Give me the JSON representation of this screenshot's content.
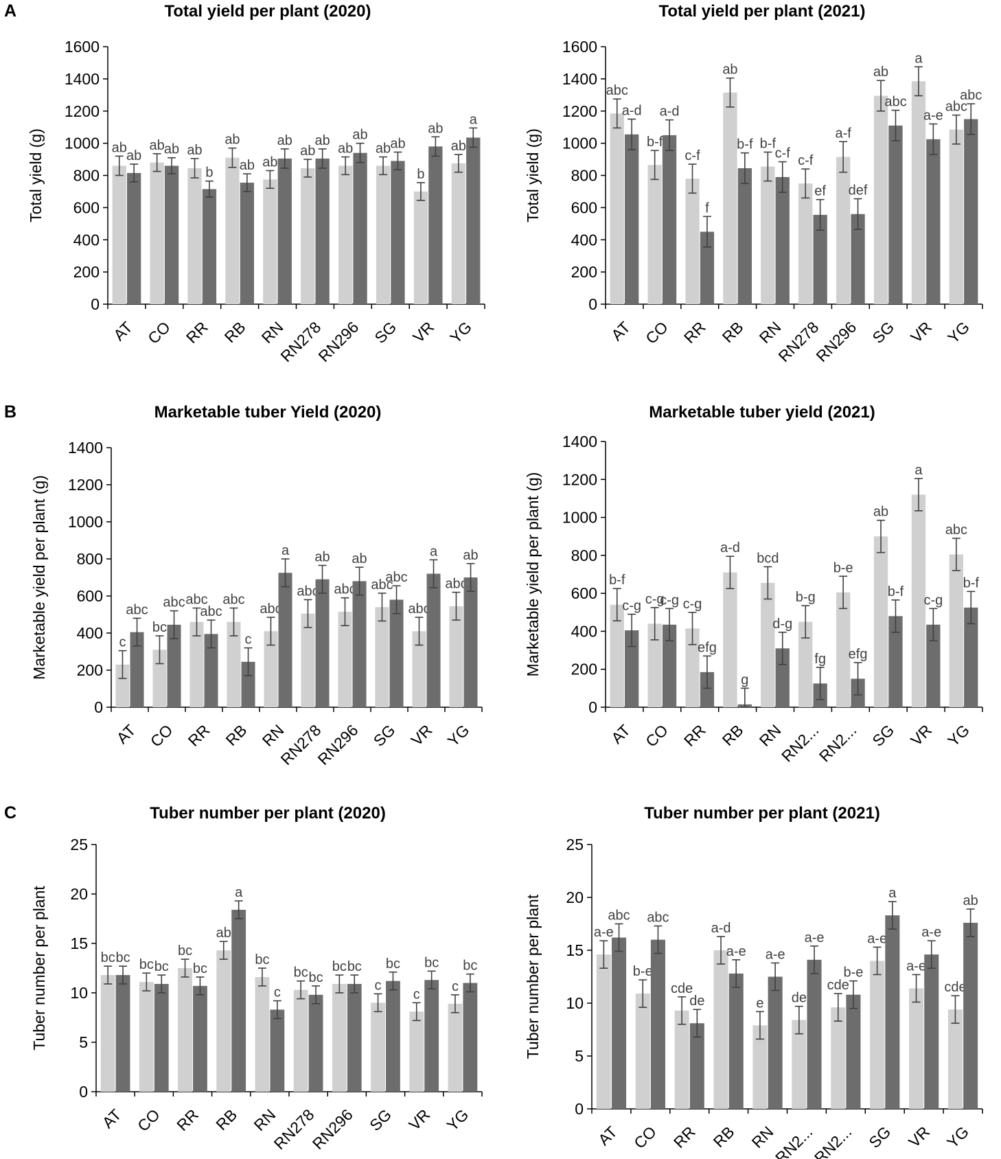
{
  "colors": {
    "light_bar": "#d0d0d0",
    "dark_bar": "#6d6d6d",
    "error": "#404040",
    "sig_text": "#404040"
  },
  "chart_data": [
    {
      "panel": "A",
      "type": "bar",
      "title": "Total yield per plant (2020)",
      "ylabel": "Total yield (g)",
      "ylim": [
        0,
        1600
      ],
      "yticks": [
        0,
        200,
        400,
        600,
        800,
        1000,
        1200,
        1400,
        1600
      ],
      "categories": [
        "AT",
        "CO",
        "RR",
        "RB",
        "RN",
        "RN278",
        "RN296",
        "SG",
        "VR",
        "YG"
      ],
      "series": [
        {
          "name": "light",
          "values": [
            860,
            880,
            845,
            910,
            775,
            845,
            860,
            860,
            700,
            875
          ],
          "errors": [
            60,
            55,
            60,
            60,
            55,
            55,
            55,
            55,
            55,
            55
          ],
          "labels": [
            "ab",
            "ab",
            "ab",
            "ab",
            "ab",
            "ab",
            "ab",
            "ab",
            "b",
            "ab"
          ]
        },
        {
          "name": "dark",
          "values": [
            815,
            860,
            715,
            755,
            905,
            905,
            940,
            890,
            980,
            1035
          ],
          "errors": [
            55,
            50,
            50,
            55,
            60,
            60,
            60,
            55,
            60,
            60
          ],
          "labels": [
            "ab",
            "ab",
            "b",
            "ab",
            "ab",
            "ab",
            "ab",
            "ab",
            "ab",
            "a"
          ]
        }
      ]
    },
    {
      "panel": "",
      "type": "bar",
      "title": "Total yield per plant (2021)",
      "ylabel": "Total yield (g)",
      "ylim": [
        0,
        1600
      ],
      "yticks": [
        0,
        200,
        400,
        600,
        800,
        1000,
        1200,
        1400,
        1600
      ],
      "categories": [
        "AT",
        "CO",
        "RR",
        "RB",
        "RN",
        "RN278",
        "RN296",
        "SG",
        "VR",
        "YG"
      ],
      "series": [
        {
          "name": "light",
          "values": [
            1185,
            865,
            780,
            1315,
            855,
            750,
            915,
            1295,
            1385,
            1085
          ],
          "errors": [
            90,
            90,
            90,
            90,
            90,
            90,
            95,
            95,
            90,
            90
          ],
          "labels": [
            "abc",
            "b-f",
            "c-f",
            "ab",
            "b-f",
            "c-f",
            "a-f",
            "ab",
            "a",
            "abc"
          ]
        },
        {
          "name": "dark",
          "values": [
            1055,
            1050,
            450,
            845,
            790,
            555,
            560,
            1110,
            1025,
            1150
          ],
          "errors": [
            95,
            95,
            95,
            95,
            95,
            95,
            95,
            95,
            95,
            95
          ],
          "labels": [
            "a-d",
            "a-d",
            "f",
            "b-f",
            "c-f",
            "ef",
            "def",
            "abc",
            "a-e",
            "abc"
          ]
        }
      ]
    },
    {
      "panel": "B",
      "type": "bar",
      "title": "Marketable tuber Yield (2020)",
      "ylabel": "Marketable yield per plant (g)",
      "ylim": [
        0,
        1400
      ],
      "yticks": [
        0,
        200,
        400,
        600,
        800,
        1000,
        1200,
        1400
      ],
      "categories": [
        "AT",
        "CO",
        "RR",
        "RB",
        "RN",
        "RN278",
        "RN296",
        "SG",
        "VR",
        "YG"
      ],
      "series": [
        {
          "name": "light",
          "values": [
            230,
            310,
            460,
            460,
            410,
            505,
            515,
            540,
            410,
            545
          ],
          "errors": [
            75,
            75,
            75,
            75,
            75,
            75,
            75,
            75,
            75,
            75
          ],
          "labels": [
            "c",
            "bc",
            "abc",
            "abc",
            "abc",
            "abc",
            "abc",
            "abc",
            "abc",
            "abc"
          ]
        },
        {
          "name": "dark",
          "values": [
            405,
            445,
            395,
            245,
            725,
            690,
            680,
            580,
            720,
            700
          ],
          "errors": [
            75,
            75,
            75,
            75,
            75,
            75,
            75,
            75,
            75,
            75
          ],
          "labels": [
            "abc",
            "abc",
            "abc",
            "c",
            "a",
            "ab",
            "ab",
            "abc",
            "a",
            "ab"
          ]
        }
      ]
    },
    {
      "panel": "",
      "type": "bar",
      "title": "Marketable tuber yield (2021)",
      "ylabel": "Marketable yield per plant (g)",
      "ylim": [
        0,
        1400
      ],
      "yticks": [
        0,
        200,
        400,
        600,
        800,
        1000,
        1200,
        1400
      ],
      "categories": [
        "AT",
        "CO",
        "RR",
        "RB",
        "RN",
        "RN2...",
        "RN2...",
        "SG",
        "VR",
        "YG"
      ],
      "series": [
        {
          "name": "light",
          "values": [
            540,
            440,
            415,
            710,
            655,
            450,
            605,
            900,
            1120,
            805
          ],
          "errors": [
            85,
            85,
            85,
            85,
            85,
            85,
            85,
            85,
            85,
            85
          ],
          "labels": [
            "b-f",
            "c-g",
            "c-g",
            "a-d",
            "bcd",
            "b-g",
            "b-e",
            "ab",
            "a",
            "abc"
          ]
        },
        {
          "name": "dark",
          "values": [
            405,
            435,
            185,
            15,
            310,
            125,
            150,
            480,
            435,
            525
          ],
          "errors": [
            85,
            85,
            85,
            85,
            85,
            85,
            85,
            85,
            85,
            85
          ],
          "labels": [
            "c-g",
            "c-g",
            "efg",
            "g",
            "d-g",
            "fg",
            "efg",
            "b-f",
            "c-g",
            "b-f"
          ]
        }
      ]
    },
    {
      "panel": "C",
      "type": "bar",
      "title": "Tuber number per plant (2020)",
      "ylabel": "Tuber number per plant",
      "ylim": [
        0,
        25
      ],
      "yticks": [
        0,
        5,
        10,
        15,
        20,
        25
      ],
      "categories": [
        "AT",
        "CO",
        "RR",
        "RB",
        "RN",
        "RN278",
        "RN296",
        "SG",
        "VR",
        "YG"
      ],
      "series": [
        {
          "name": "light",
          "values": [
            11.8,
            11.1,
            12.5,
            14.3,
            11.6,
            10.3,
            10.9,
            9.0,
            8.1,
            8.9
          ],
          "errors": [
            0.9,
            0.9,
            0.9,
            0.9,
            0.9,
            0.9,
            0.9,
            0.9,
            0.9,
            0.9
          ],
          "labels": [
            "bc",
            "bc",
            "bc",
            "ab",
            "bc",
            "bc",
            "bc",
            "c",
            "c",
            "c"
          ]
        },
        {
          "name": "dark",
          "values": [
            11.8,
            10.9,
            10.7,
            18.4,
            8.3,
            9.8,
            10.9,
            11.2,
            11.3,
            11.0
          ],
          "errors": [
            0.9,
            0.9,
            0.9,
            0.9,
            0.9,
            0.9,
            0.9,
            0.9,
            0.9,
            0.9
          ],
          "labels": [
            "bc",
            "bc",
            "bc",
            "a",
            "c",
            "bc",
            "bc",
            "bc",
            "bc",
            "bc"
          ]
        }
      ]
    },
    {
      "panel": "",
      "type": "bar",
      "title": "Tuber number per plant (2021)",
      "ylabel": "Tuber number per plant",
      "ylim": [
        0,
        25
      ],
      "yticks": [
        0,
        5,
        10,
        15,
        20,
        25
      ],
      "categories": [
        "AT",
        "CO",
        "RR",
        "RB",
        "RN",
        "RN2...",
        "RN2...",
        "SG",
        "VR",
        "YG"
      ],
      "series": [
        {
          "name": "light",
          "values": [
            14.6,
            10.9,
            9.3,
            15.0,
            7.9,
            8.4,
            9.6,
            14.0,
            11.4,
            9.4
          ],
          "errors": [
            1.3,
            1.3,
            1.3,
            1.3,
            1.3,
            1.3,
            1.3,
            1.3,
            1.3,
            1.3
          ],
          "labels": [
            "a-e",
            "b-e",
            "cde",
            "a-d",
            "e",
            "de",
            "cde",
            "a-e",
            "a-e",
            "cde"
          ]
        },
        {
          "name": "dark",
          "values": [
            16.2,
            16.0,
            8.1,
            12.8,
            12.5,
            14.1,
            10.8,
            18.3,
            14.6,
            17.6
          ],
          "errors": [
            1.3,
            1.3,
            1.3,
            1.3,
            1.3,
            1.3,
            1.3,
            1.3,
            1.3,
            1.3
          ],
          "labels": [
            "abc",
            "abc",
            "de",
            "a-e",
            "a-e",
            "a-e",
            "b-e",
            "a",
            "a-e",
            "ab"
          ]
        }
      ]
    }
  ]
}
